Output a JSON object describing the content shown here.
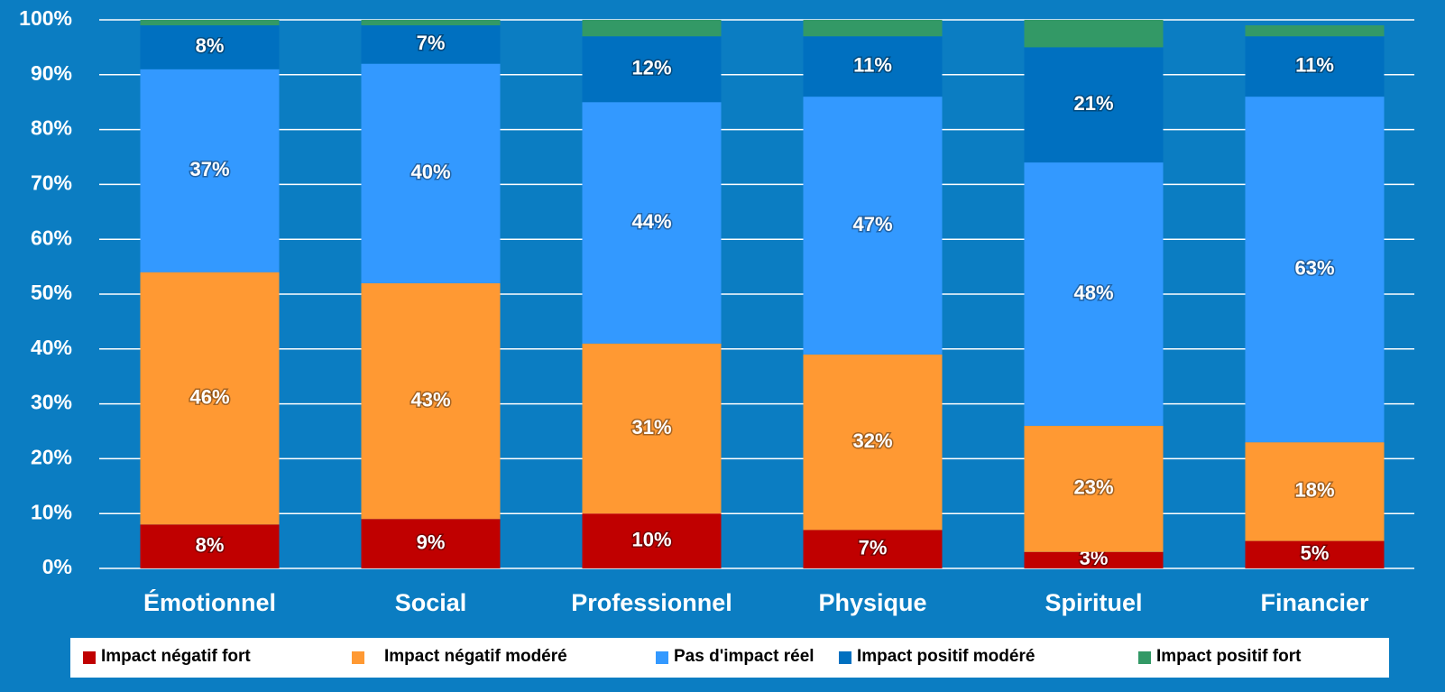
{
  "chart_data": {
    "type": "stacked_bar",
    "categories": [
      "Émotionnel",
      "Social",
      "Professionnel",
      "Physique",
      "Spirituel",
      "Financier"
    ],
    "series": [
      {
        "name": "Impact négatif fort",
        "color": "#c00000",
        "values": [
          8,
          9,
          10,
          7,
          3,
          5
        ],
        "value_labels": [
          "8%",
          "9%",
          "10%",
          "7%",
          "3%",
          "5%"
        ]
      },
      {
        "name": "Impact négatif modéré",
        "color": "#ff9933",
        "values": [
          46,
          43,
          31,
          32,
          23,
          18
        ],
        "value_labels": [
          "46%",
          "43%",
          "31%",
          "32%",
          "23%",
          "18%"
        ]
      },
      {
        "name": "Pas d'impact réel",
        "color": "#3399ff",
        "values": [
          37,
          40,
          44,
          47,
          48,
          63
        ],
        "value_labels": [
          "37%",
          "40%",
          "44%",
          "47%",
          "48%",
          "63%"
        ]
      },
      {
        "name": "Impact positif modéré",
        "color": "#0070c0",
        "values": [
          8,
          7,
          12,
          11,
          21,
          11
        ],
        "value_labels": [
          "8%",
          "7%",
          "12%",
          "11%",
          "21%",
          "11%"
        ]
      },
      {
        "name": "Impact positif fort",
        "color": "#339966",
        "values": [
          1,
          1,
          3,
          3,
          5,
          2
        ]
      }
    ],
    "ylim": [
      0,
      100
    ],
    "yticks": [
      {
        "value": 0,
        "label": "0%"
      },
      {
        "value": 10,
        "label": "10%"
      },
      {
        "value": 20,
        "label": "20%"
      },
      {
        "value": 30,
        "label": "30%"
      },
      {
        "value": 40,
        "label": "40%"
      },
      {
        "value": 50,
        "label": "50%"
      },
      {
        "value": 60,
        "label": "60%"
      },
      {
        "value": 70,
        "label": "70%"
      },
      {
        "value": 80,
        "label": "80%"
      },
      {
        "value": 90,
        "label": "90%"
      },
      {
        "value": 100,
        "label": "100%"
      }
    ],
    "grid": true,
    "legend": "bottom"
  }
}
